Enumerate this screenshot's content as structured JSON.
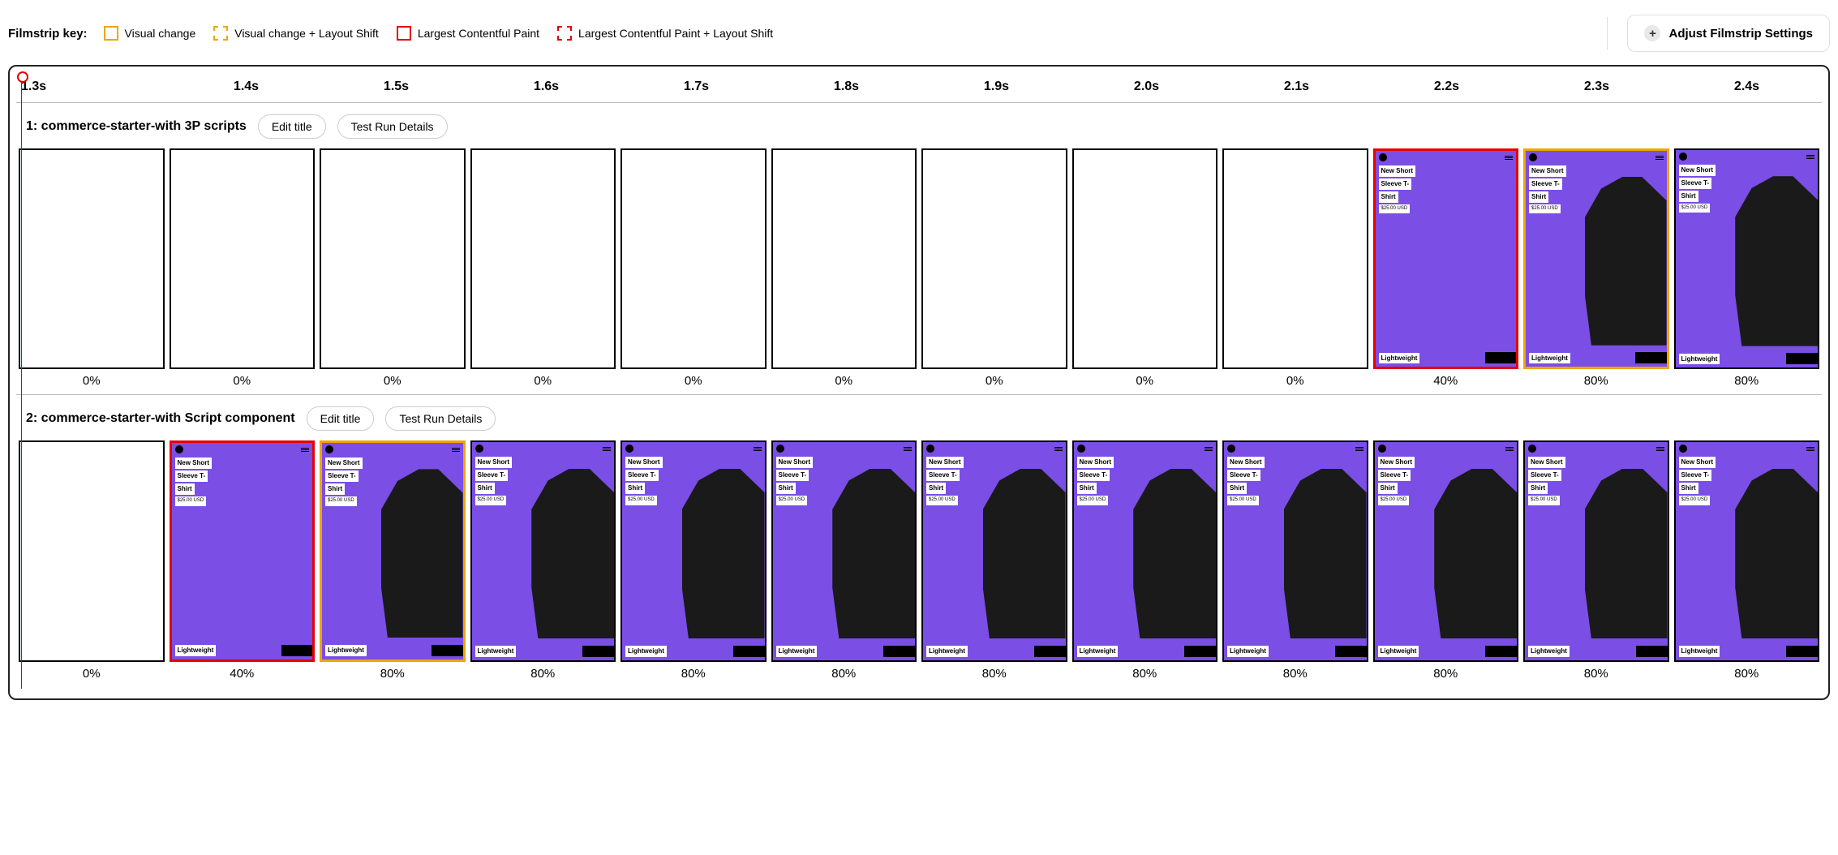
{
  "legend": {
    "title": "Filmstrip key:",
    "items": [
      {
        "label": "Visual change",
        "style": "solid-orange"
      },
      {
        "label": "Visual change + Layout Shift",
        "style": "dashed-orange"
      },
      {
        "label": "Largest Contentful Paint",
        "style": "solid-red"
      },
      {
        "label": "Largest Contentful Paint + Layout Shift",
        "style": "dashed-red"
      }
    ]
  },
  "settings_button": "Adjust Filmstrip Settings",
  "timeline": [
    "1.3s",
    "1.4s",
    "1.5s",
    "1.6s",
    "1.7s",
    "1.8s",
    "1.9s",
    "2.0s",
    "2.1s",
    "2.2s",
    "2.3s",
    "2.4s"
  ],
  "thumb_content": {
    "title_line1": "New Short",
    "title_line2": "Sleeve T-",
    "title_line3": "Shirt",
    "price": "$25.00 USD",
    "tag": "Lightweight",
    "bg_color": "#7b4ee6",
    "shirt_color": "#1a1a1a"
  },
  "runs": [
    {
      "title": "1: commerce-starter-with 3P scripts",
      "edit_label": "Edit title",
      "details_label": "Test Run Details",
      "frames": [
        {
          "pct": "0%",
          "state": "blank",
          "border": "normal"
        },
        {
          "pct": "0%",
          "state": "blank",
          "border": "normal"
        },
        {
          "pct": "0%",
          "state": "blank",
          "border": "normal"
        },
        {
          "pct": "0%",
          "state": "blank",
          "border": "normal"
        },
        {
          "pct": "0%",
          "state": "blank",
          "border": "normal"
        },
        {
          "pct": "0%",
          "state": "blank",
          "border": "normal"
        },
        {
          "pct": "0%",
          "state": "blank",
          "border": "normal"
        },
        {
          "pct": "0%",
          "state": "blank",
          "border": "normal"
        },
        {
          "pct": "0%",
          "state": "blank",
          "border": "normal"
        },
        {
          "pct": "40%",
          "state": "partial",
          "border": "lcp"
        },
        {
          "pct": "80%",
          "state": "full",
          "border": "visual"
        },
        {
          "pct": "80%",
          "state": "full",
          "border": "normal"
        }
      ]
    },
    {
      "title": "2: commerce-starter-with Script component",
      "edit_label": "Edit title",
      "details_label": "Test Run Details",
      "frames": [
        {
          "pct": "0%",
          "state": "blank",
          "border": "normal"
        },
        {
          "pct": "40%",
          "state": "partial",
          "border": "lcp"
        },
        {
          "pct": "80%",
          "state": "full",
          "border": "visual"
        },
        {
          "pct": "80%",
          "state": "full",
          "border": "normal"
        },
        {
          "pct": "80%",
          "state": "full",
          "border": "normal"
        },
        {
          "pct": "80%",
          "state": "full",
          "border": "normal"
        },
        {
          "pct": "80%",
          "state": "full",
          "border": "normal"
        },
        {
          "pct": "80%",
          "state": "full",
          "border": "normal"
        },
        {
          "pct": "80%",
          "state": "full",
          "border": "normal"
        },
        {
          "pct": "80%",
          "state": "full",
          "border": "normal"
        },
        {
          "pct": "80%",
          "state": "full",
          "border": "normal"
        },
        {
          "pct": "80%",
          "state": "full",
          "border": "normal"
        }
      ]
    }
  ]
}
